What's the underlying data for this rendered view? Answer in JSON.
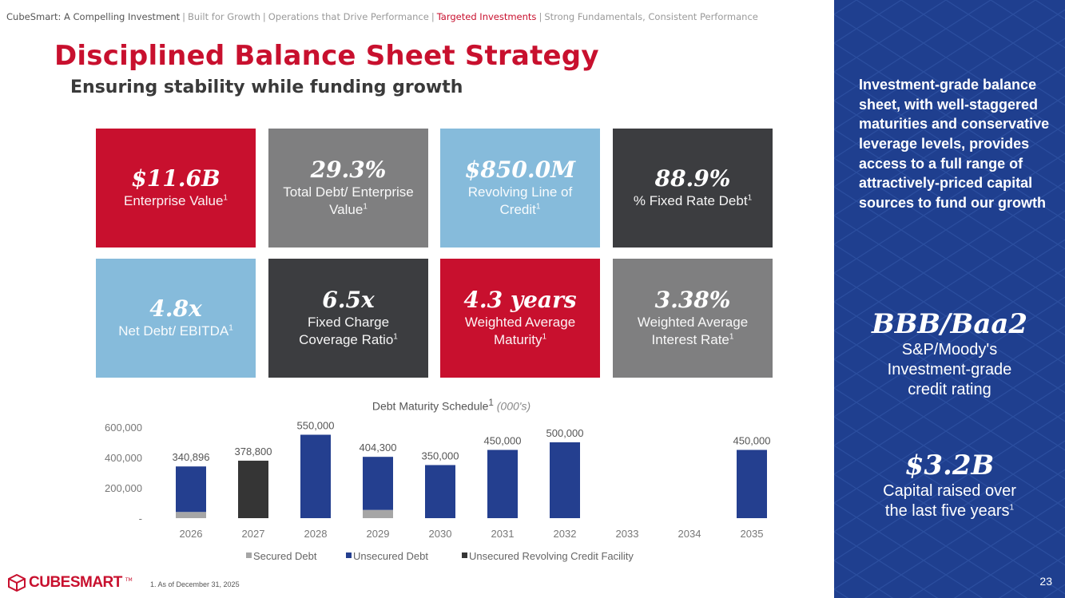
{
  "breadcrumb": {
    "items": [
      {
        "label": "CubeSmart: A Compelling Investment",
        "state": "first"
      },
      {
        "label": "Built for Growth",
        "state": ""
      },
      {
        "label": "Operations that Drive Performance",
        "state": ""
      },
      {
        "label": "Targeted Investments",
        "state": "active"
      },
      {
        "label": "Strong Fundamentals, Consistent Performance",
        "state": ""
      }
    ],
    "separator": "|"
  },
  "header": {
    "title": "Disciplined Balance Sheet Strategy",
    "subtitle": "Ensuring stability while funding growth"
  },
  "metrics": [
    {
      "value": "$11.6B",
      "label": "Enterprise Value",
      "note": "1",
      "color": "#c8102e"
    },
    {
      "value": "29.3%",
      "label": "Total Debt/ Enterprise Value",
      "note": "1",
      "color": "#7f7f80"
    },
    {
      "value": "$850.0M",
      "label": "Revolving Line of Credit",
      "note": "1",
      "color": "#86bbdb"
    },
    {
      "value": "88.9%",
      "label": "% Fixed Rate Debt",
      "note": "1",
      "color": "#3c3d40"
    },
    {
      "value": "4.8x",
      "label": "Net Debt/ EBITDA",
      "note": "1",
      "color": "#86bbdb"
    },
    {
      "value": "6.5x",
      "label": "Fixed Charge Coverage Ratio",
      "note": "1",
      "color": "#3c3d40"
    },
    {
      "value": "4.3 years",
      "label": "Weighted Average Maturity",
      "note": "1",
      "color": "#c8102e"
    },
    {
      "value": "3.38%",
      "label": "Weighted Average Interest Rate",
      "note": "1",
      "color": "#7f7f80"
    }
  ],
  "chart_title": {
    "main": "Debt Maturity Schedule",
    "note": "1",
    "paren": "(000's)"
  },
  "chart_data": {
    "type": "bar",
    "stacked": true,
    "title": "Debt Maturity Schedule (000's)",
    "categories": [
      "2026",
      "2027",
      "2028",
      "2029",
      "2030",
      "2031",
      "2032",
      "2033",
      "2034",
      "2035"
    ],
    "series": [
      {
        "name": "Secured Debt",
        "color": "#a6a6a6",
        "values": [
          40896,
          0,
          0,
          54300,
          0,
          0,
          0,
          0,
          0,
          0
        ]
      },
      {
        "name": "Unsecured Debt",
        "color": "#243f8f",
        "values": [
          300000,
          0,
          550000,
          350000,
          350000,
          450000,
          500000,
          0,
          0,
          450000
        ]
      },
      {
        "name": "Unsecured Revolving Credit Facility",
        "color": "#353535",
        "values": [
          0,
          378800,
          0,
          0,
          0,
          0,
          0,
          0,
          0,
          0
        ]
      }
    ],
    "totals": [
      "340,896",
      "378,800",
      "550,000",
      "404,300",
      "350,000",
      "450,000",
      "500,000",
      "",
      "",
      "450,000"
    ],
    "y_ticks": [
      "-",
      "200,000",
      "400,000",
      "600,000"
    ],
    "ylim": [
      0,
      600000
    ],
    "legend_position": "bottom"
  },
  "footnote": "1.   As of December 31, 2025",
  "logo": {
    "word": "CUBESMART",
    "tm": "TM"
  },
  "sidebar": {
    "text": "Investment-grade balance sheet, with well-staggered maturities and conservative leverage levels, provides access to a full range of attractively-priced capital sources to fund our growth",
    "rating": {
      "value": "BBB/Baa2",
      "label_lines": [
        "S&P/Moody's",
        "Investment-grade",
        "credit rating"
      ]
    },
    "capital": {
      "value": "$3.2B",
      "label_lines": [
        "Capital raised over",
        "the last five years"
      ],
      "note": "1"
    },
    "page_number": "23"
  }
}
